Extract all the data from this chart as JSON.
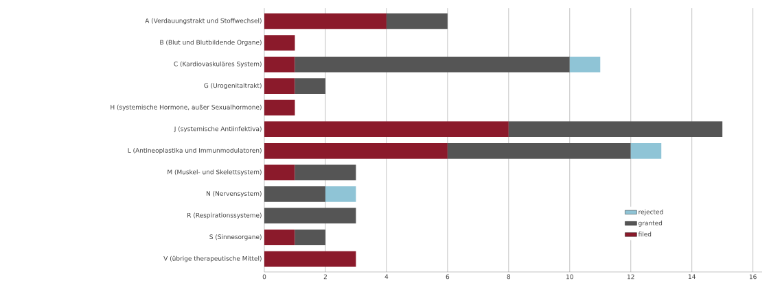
{
  "chart_data": {
    "type": "bar",
    "orientation": "horizontal",
    "stacked": true,
    "categories": [
      "A (Verdauungstrakt und Stoffwechsel)",
      "B (Blut und Blutbildende Organe)",
      "C (Kardiovaskuläres System)",
      "G (Urogenitaltrakt)",
      "H (systemische Hormone, außer Sexualhormone)",
      "J (systemische Antiinfektiva)",
      "L (Antineoplastika und Immunmodulatoren)",
      "M (Muskel- und Skelettsystem)",
      "N (Nervensystem)",
      "R (Respirationssysteme)",
      "S (Sinnesorgane)",
      "V (übrige therapeutische Mittel)"
    ],
    "series": [
      {
        "name": "filed",
        "color": "#8b1a2b",
        "values": [
          4,
          1,
          1,
          1,
          1,
          8,
          6,
          1,
          null,
          null,
          1,
          3
        ]
      },
      {
        "name": "granted",
        "color": "#555555",
        "values": [
          2,
          null,
          9,
          1,
          null,
          7,
          6,
          2,
          2,
          3,
          1,
          null
        ]
      },
      {
        "name": "rejected",
        "color": "#8fc4d6",
        "values": [
          null,
          null,
          1,
          null,
          null,
          null,
          1,
          null,
          1,
          null,
          null,
          null
        ]
      }
    ],
    "xlim": [
      0,
      16.3
    ],
    "xticks": [
      0,
      2,
      4,
      6,
      8,
      10,
      12,
      14,
      16
    ],
    "grid": "x",
    "legend": "right"
  }
}
